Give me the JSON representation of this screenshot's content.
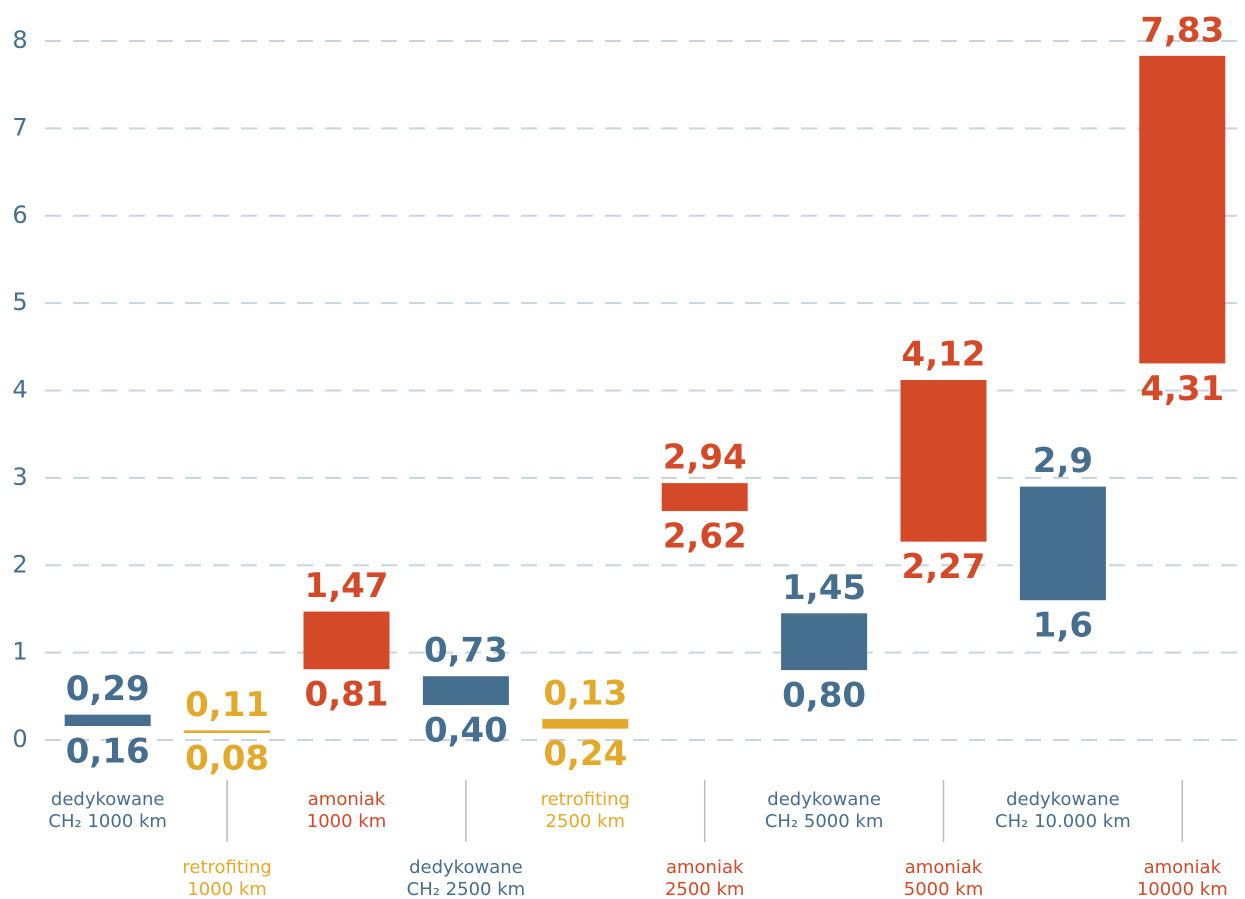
{
  "chart_data": {
    "type": "floating_bar",
    "categories": [
      [
        "dedykowane",
        "CH₂ 1000 km"
      ],
      [
        "retrofiting",
        "1000 km"
      ],
      [
        "amoniak",
        "1000 km"
      ],
      [
        "dedykowane",
        "CH₂ 2500 km"
      ],
      [
        "retrofiting",
        "2500 km"
      ],
      [
        "amoniak",
        "2500 km"
      ],
      [
        "dedykowane",
        "CH₂ 5000 km"
      ],
      [
        "amoniak",
        "5000 km"
      ],
      [
        "dedykowane",
        "CH₂ 10.000 km"
      ],
      [
        "amoniak",
        "10000 km"
      ]
    ],
    "top": [
      0.29,
      0.11,
      1.47,
      0.73,
      0.13,
      2.94,
      1.45,
      4.12,
      2.9,
      7.83
    ],
    "top_labels": [
      "0,29",
      "0,11",
      "1,47",
      "0,73",
      "0,13",
      "2,94",
      "1,45",
      "4,12",
      "2,9",
      "7,83"
    ],
    "bottom": [
      0.16,
      0.08,
      0.81,
      0.4,
      0.24,
      2.62,
      0.8,
      2.27,
      1.6,
      4.31
    ],
    "bottom_labels": [
      "0,16",
      "0,08",
      "0,81",
      "0,40",
      "0,24",
      "2,62",
      "0,80",
      "2,27",
      "1,6",
      "4,31"
    ],
    "colors": [
      "#466e8f",
      "#e3a92a",
      "#d44a29",
      "#466e8f",
      "#e3a92a",
      "#d44a29",
      "#466e8f",
      "#d44a29",
      "#466e8f",
      "#d44a29"
    ],
    "ylim": [
      0,
      8
    ],
    "yticks": [
      0,
      1,
      2,
      3,
      4,
      5,
      6,
      7,
      8
    ],
    "grid": true
  }
}
